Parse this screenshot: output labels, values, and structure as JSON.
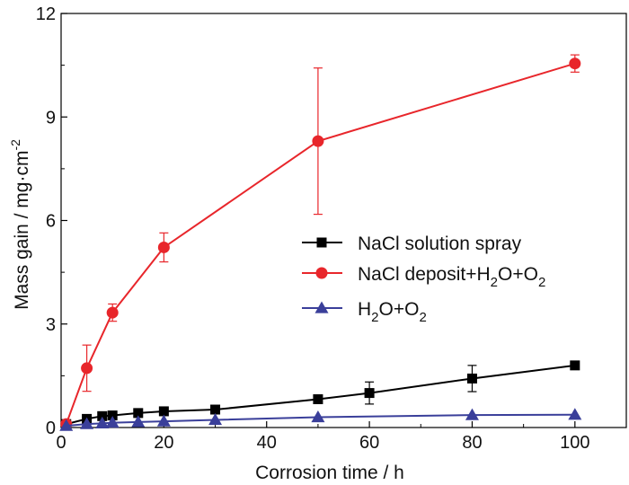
{
  "chart_data": {
    "type": "line",
    "xlabel": "Corrosion time / h",
    "ylabel": "Mass gain / mg·cm",
    "ylabel_sup": "-2",
    "xlim": [
      0,
      110
    ],
    "ylim": [
      0,
      12
    ],
    "x_ticks": [
      0,
      20,
      40,
      60,
      80,
      100
    ],
    "y_ticks": [
      0,
      3,
      6,
      9,
      12
    ],
    "grid": false,
    "legend_position": "center-right",
    "series": [
      {
        "name": "NaCl solution spray",
        "color": "#000000",
        "marker": "square",
        "x": [
          1,
          5,
          8,
          10,
          15,
          20,
          30,
          50,
          60,
          80,
          100
        ],
        "y": [
          0.1,
          0.25,
          0.33,
          0.35,
          0.42,
          0.47,
          0.52,
          0.82,
          1.0,
          1.42,
          1.8
        ],
        "err": [
          0,
          0,
          0,
          0,
          0,
          0,
          0,
          0,
          0.32,
          0.38,
          0
        ]
      },
      {
        "name": "NaCl deposit+H2O+O2",
        "name_parts": [
          {
            "t": "NaCl deposit+H"
          },
          {
            "t": "2",
            "sub": true
          },
          {
            "t": "O+O"
          },
          {
            "t": "2",
            "sub": true
          }
        ],
        "color": "#e8262b",
        "marker": "circle",
        "x": [
          1,
          5,
          10,
          20,
          50,
          100
        ],
        "y": [
          0.1,
          1.72,
          3.33,
          5.22,
          8.3,
          10.55
        ],
        "err": [
          0,
          0.67,
          0.25,
          0.42,
          2.12,
          0.25
        ]
      },
      {
        "name": "H2O+O2",
        "name_parts": [
          {
            "t": "H"
          },
          {
            "t": "2",
            "sub": true
          },
          {
            "t": "O+O"
          },
          {
            "t": "2",
            "sub": true
          }
        ],
        "color": "#3a3f9a",
        "marker": "triangle",
        "x": [
          1,
          5,
          8,
          10,
          15,
          20,
          30,
          50,
          80,
          100
        ],
        "y": [
          0.05,
          0.1,
          0.12,
          0.14,
          0.16,
          0.18,
          0.22,
          0.3,
          0.36,
          0.37
        ],
        "err": [
          0,
          0,
          0,
          0,
          0,
          0,
          0,
          0,
          0,
          0
        ]
      }
    ]
  }
}
